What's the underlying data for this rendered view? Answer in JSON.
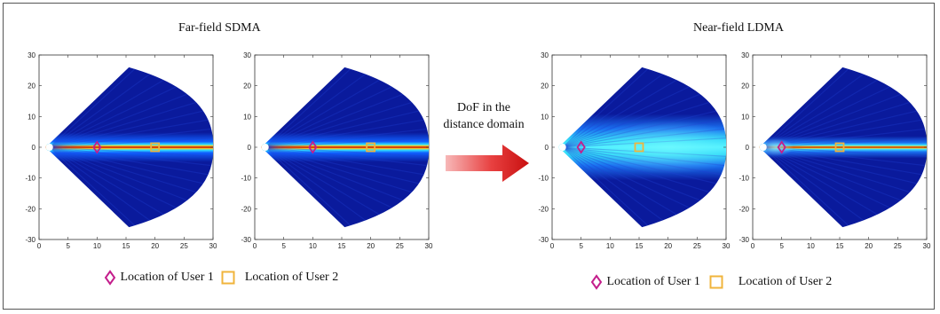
{
  "sections": [
    {
      "title": "Far-field SDMA",
      "mode": "far"
    },
    {
      "title": "Near-field LDMA",
      "mode": "near"
    }
  ],
  "arrow": {
    "line1": "DoF in the",
    "line2": "distance domain"
  },
  "legend": {
    "user1": "Location of User 1",
    "user2": "Location of User 2"
  },
  "colors": {
    "user1_marker": "#c41e8c",
    "user2_marker": "#f0b43c",
    "arrow": "#e02020",
    "background_field": "#0a1a9c"
  },
  "axes": {
    "x_ticks": [
      "0",
      "5",
      "10",
      "15",
      "20",
      "25",
      "30"
    ],
    "y_ticks": [
      "30",
      "20",
      "10",
      "0",
      "-10",
      "-20",
      "-30"
    ],
    "xlim": [
      0,
      30
    ],
    "ylim": [
      -30,
      30
    ]
  },
  "plots": [
    {
      "id": "far-1",
      "mode": "far",
      "user1_x": 10,
      "user2_x": 20
    },
    {
      "id": "far-2",
      "mode": "far",
      "user1_x": 10,
      "user2_x": 20
    },
    {
      "id": "near-1",
      "mode": "near-user2",
      "user1_x": 5,
      "user2_x": 15
    },
    {
      "id": "near-2",
      "mode": "near-user1",
      "user1_x": 5,
      "user2_x": 15
    }
  ]
}
